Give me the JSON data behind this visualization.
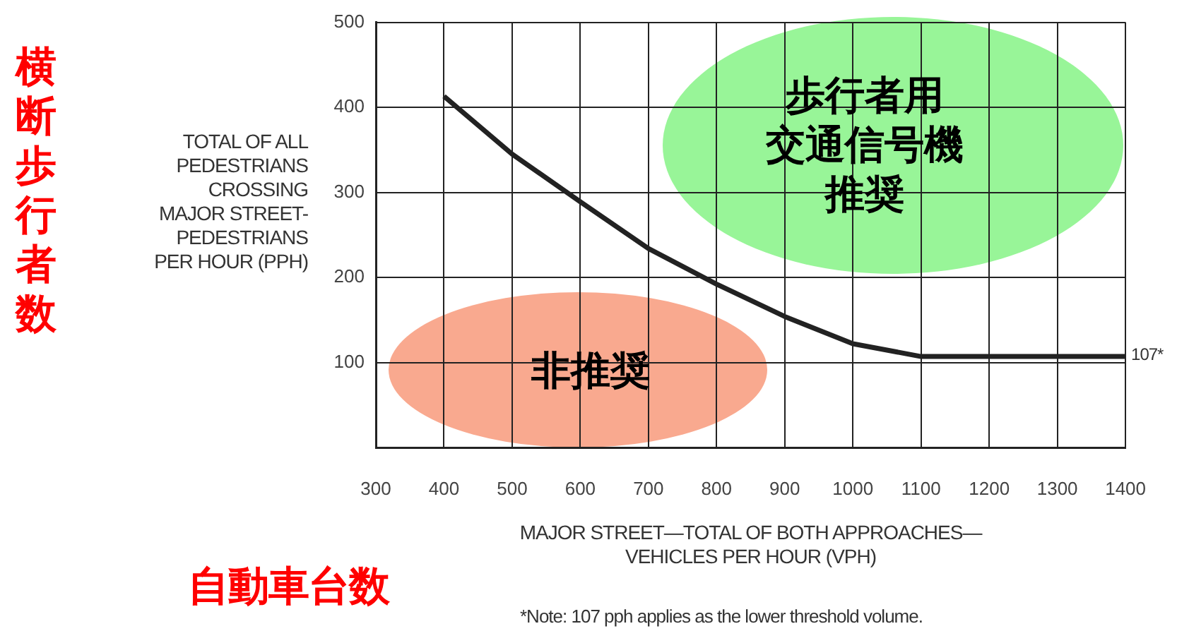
{
  "chart_data": {
    "type": "line",
    "xlabel": "MAJOR STREET—TOTAL OF BOTH APPROACHES—\nVEHICLES PER HOUR (VPH)",
    "ylabel": "TOTAL OF ALL\nPEDESTRIANS\nCROSSING\nMAJOR STREET-\nPEDESTRIANS\nPER HOUR (PPH)",
    "x": [
      400,
      500,
      600,
      700,
      800,
      900,
      1000,
      1100,
      1400
    ],
    "series": [
      {
        "color": "#222222",
        "values": [
          413,
          345,
          289,
          234,
          192,
          154,
          122,
          107,
          107
        ]
      }
    ],
    "xlim": [
      300,
      1400
    ],
    "xticks": [
      300,
      400,
      500,
      600,
      700,
      800,
      900,
      1000,
      1100,
      1200,
      1300,
      1400
    ],
    "ylim": [
      0,
      500
    ],
    "yticks": [
      {
        "value": 0,
        "label": null
      },
      100,
      200,
      300,
      400,
      500
    ],
    "grid": true,
    "legend": false,
    "marker": "none",
    "line_style": "solid",
    "annotations": [
      {
        "text": "107*",
        "x": 1400,
        "y": 107
      },
      "歩行者用交通信号機推奨",
      "非推奨",
      "横断歩行者数",
      "自動車台数",
      "*Note: 107 pph applies as the lower threshold volume."
    ]
  }
}
